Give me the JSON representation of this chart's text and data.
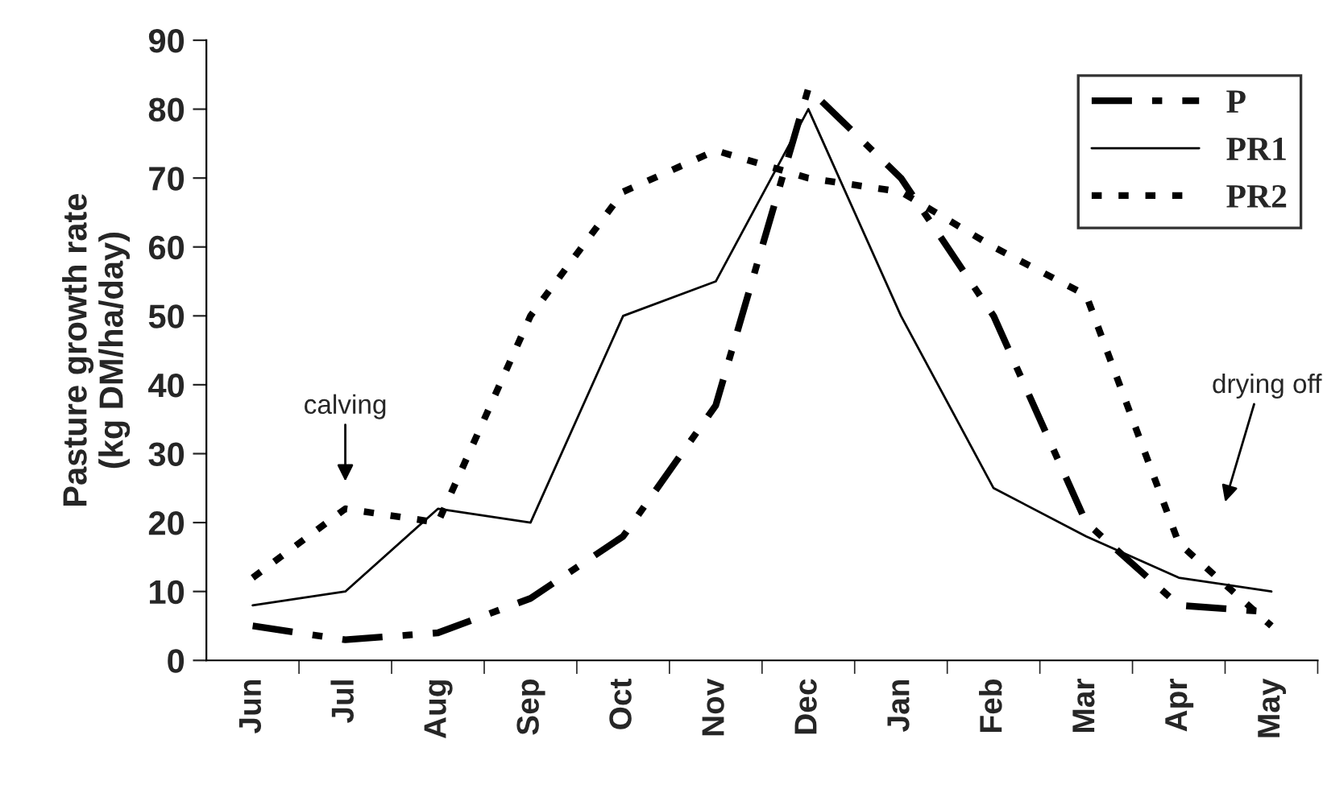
{
  "chart_data": {
    "type": "line",
    "ylabel": "Pasture growth rate\n(kg DM/ha/day)",
    "categories": [
      "Jun",
      "Jul",
      "Aug",
      "Sep",
      "Oct",
      "Nov",
      "Dec",
      "Jan",
      "Feb",
      "Mar",
      "Apr",
      "May"
    ],
    "series": [
      {
        "name": "P",
        "color": "#000000",
        "line_style": "dashdot",
        "values": [
          5,
          3,
          4,
          9,
          18,
          37,
          83,
          70,
          50,
          20,
          8,
          7
        ]
      },
      {
        "name": "PR1",
        "color": "#000000",
        "line_style": "solid",
        "values": [
          8,
          10,
          22,
          20,
          50,
          55,
          80,
          50,
          25,
          18,
          12,
          10
        ]
      },
      {
        "name": "PR2",
        "color": "#000000",
        "line_style": "dotted",
        "values": [
          12,
          22,
          20,
          50,
          68,
          74,
          70,
          68,
          60,
          53,
          17,
          5
        ]
      }
    ],
    "annotations": [
      "calving",
      "drying off"
    ],
    "ylim": [
      0,
      90
    ],
    "yticks": [
      0,
      10,
      20,
      30,
      40,
      50,
      60,
      70,
      80,
      90
    ],
    "grid": false,
    "legend": "top right",
    "marker": "none"
  }
}
